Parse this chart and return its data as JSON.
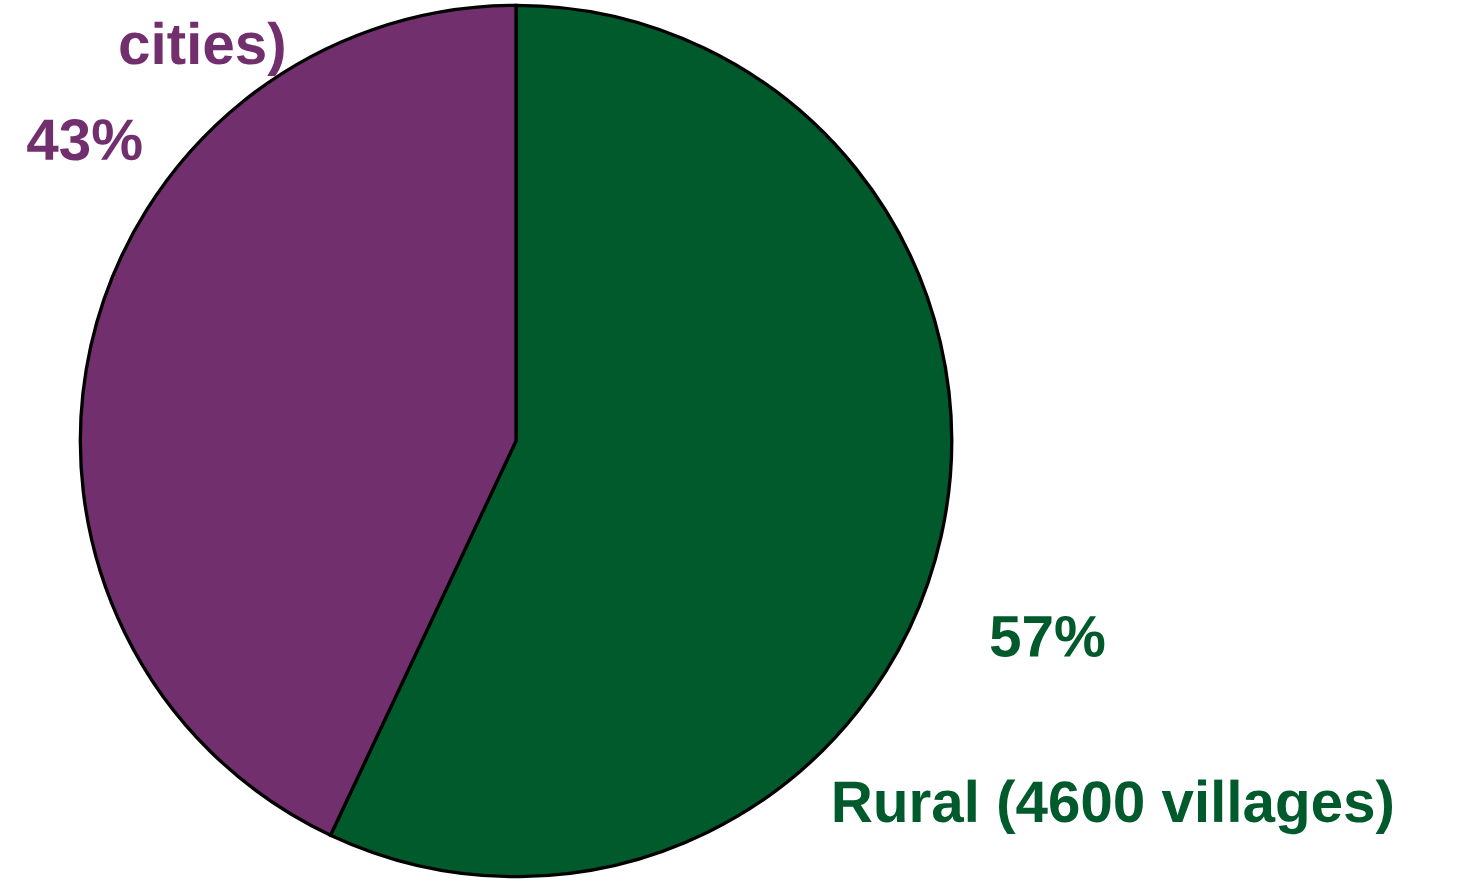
{
  "chart_data": {
    "type": "pie",
    "categories": [
      "Rural (4600 villages)",
      "cities)"
    ],
    "values": [
      57,
      43
    ],
    "colors": [
      "#005a2b",
      "#722f6e"
    ],
    "value_labels": [
      "57%",
      "43%"
    ]
  }
}
